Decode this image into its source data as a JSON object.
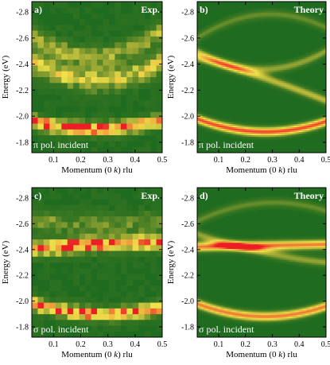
{
  "chart_data": [
    {
      "type": "heatmap",
      "panel_label": "a)",
      "corner_label": "Exp.",
      "kind": "experiment",
      "polarization_label": "π pol. incident",
      "xlabel": "Momentum (0 k) rlu",
      "ylabel": "Energy (eV)",
      "xlim": [
        0.02,
        0.5
      ],
      "ylim": [
        -1.72,
        -2.88
      ],
      "xticks": [
        0.1,
        0.2,
        0.3,
        0.4,
        0.5
      ],
      "yticks": [
        -1.8,
        -2.0,
        -2.2,
        -2.4,
        -2.6,
        -2.8
      ],
      "bands": [
        {
          "center_at_x0": -1.96,
          "center_at_mid": -1.9,
          "center_at_x1": -1.97,
          "intensity": 0.95,
          "width": 0.05
        },
        {
          "center_at_x0": -2.42,
          "center_at_mid": -2.28,
          "center_at_x1": -2.42,
          "intensity": 0.55,
          "width": 0.09
        },
        {
          "center_at_x0": -2.62,
          "center_at_mid": -2.46,
          "center_at_x1": -2.66,
          "intensity": 0.4,
          "width": 0.08
        }
      ]
    },
    {
      "type": "heatmap",
      "panel_label": "b)",
      "corner_label": "Theory",
      "kind": "theory",
      "polarization_label": "π pol. incident",
      "xlabel": "Momentum (0 k) rlu",
      "ylabel": "Energy (eV)",
      "xlim": [
        0.02,
        0.5
      ],
      "ylim": [
        -1.72,
        -2.88
      ],
      "xticks": [
        0.1,
        0.2,
        0.3,
        0.4,
        0.5
      ],
      "yticks": [
        -1.8,
        -2.0,
        -2.2,
        -2.4,
        -2.6,
        -2.8
      ],
      "bands": [
        {
          "center_at_x0": -1.98,
          "center_at_mid": -1.88,
          "center_at_x1": -1.96,
          "intensity": 0.95,
          "width": 0.04
        },
        {
          "center_at_x0": -2.45,
          "center_at_mid": -2.3,
          "center_at_x1": -2.12,
          "intensity": 0.55,
          "width": 0.04
        },
        {
          "center_at_x0": -2.5,
          "center_at_mid": -2.36,
          "center_at_x1": -2.5,
          "intensity": 0.45,
          "width": 0.04
        },
        {
          "center_at_x0": -2.6,
          "center_at_mid": -2.78,
          "center_at_x1": -2.68,
          "intensity": 0.35,
          "width": 0.04
        }
      ]
    },
    {
      "type": "heatmap",
      "panel_label": "c)",
      "corner_label": "Exp.",
      "kind": "experiment",
      "polarization_label": "σ pol. incident",
      "xlabel": "Momentum (0 k) rlu",
      "ylabel": "Energy (eV)",
      "xlim": [
        0.02,
        0.5
      ],
      "ylim": [
        -1.72,
        -2.88
      ],
      "xticks": [
        0.1,
        0.2,
        0.3,
        0.4,
        0.5
      ],
      "yticks": [
        -1.8,
        -2.0,
        -2.2,
        -2.4,
        -2.6,
        -2.8
      ],
      "bands": [
        {
          "center_at_x0": -1.98,
          "center_at_mid": -1.9,
          "center_at_x1": -1.95,
          "intensity": 0.9,
          "width": 0.05
        },
        {
          "center_at_x0": -2.4,
          "center_at_mid": -2.44,
          "center_at_x1": -2.45,
          "intensity": 0.85,
          "width": 0.06
        },
        {
          "center_at_x0": -2.62,
          "center_at_mid": -2.6,
          "center_at_x1": -2.62,
          "intensity": 0.3,
          "width": 0.08
        }
      ]
    },
    {
      "type": "heatmap",
      "panel_label": "d)",
      "corner_label": "Theory",
      "kind": "theory",
      "polarization_label": "σ pol. incident",
      "xlabel": "Momentum (0 k) rlu",
      "ylabel": "Energy (eV)",
      "xlim": [
        0.02,
        0.5
      ],
      "ylim": [
        -1.72,
        -2.88
      ],
      "xticks": [
        0.1,
        0.2,
        0.3,
        0.4,
        0.5
      ],
      "yticks": [
        -1.8,
        -2.0,
        -2.2,
        -2.4,
        -2.6,
        -2.8
      ],
      "bands": [
        {
          "center_at_x0": -1.98,
          "center_at_mid": -1.88,
          "center_at_x1": -1.96,
          "intensity": 0.9,
          "width": 0.04
        },
        {
          "center_at_x0": -2.42,
          "center_at_mid": -2.43,
          "center_at_x1": -2.44,
          "intensity": 0.9,
          "width": 0.04
        },
        {
          "center_at_x0": -2.52,
          "center_at_mid": -2.38,
          "center_at_x1": -2.3,
          "intensity": 0.45,
          "width": 0.04
        },
        {
          "center_at_x0": -2.62,
          "center_at_mid": -2.76,
          "center_at_x1": -2.7,
          "intensity": 0.35,
          "width": 0.04
        }
      ]
    }
  ],
  "colors": {
    "background": "#1f6b1f",
    "mid": "#c9c935",
    "high": "#f0e34a",
    "peak": "#ee1c24",
    "panel_text": "#ffffff"
  }
}
